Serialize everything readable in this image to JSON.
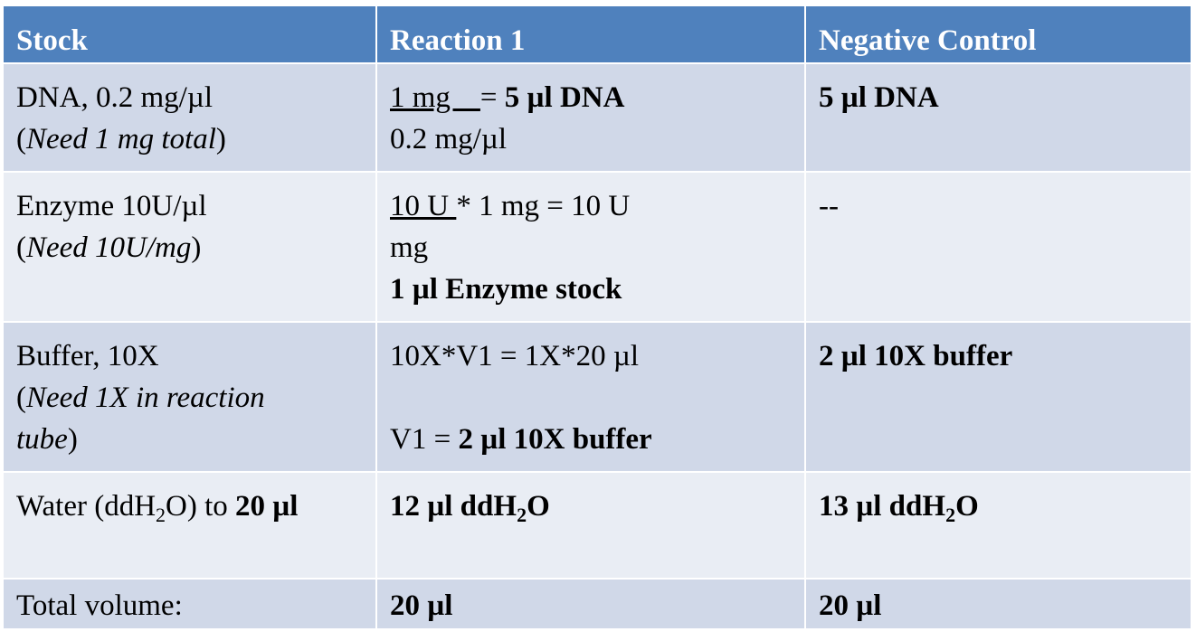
{
  "header": {
    "col1": "Stock",
    "col2": "Reaction 1",
    "col3": "Negative Control"
  },
  "rows": [
    {
      "stock_main": "DNA, 0.2 mg/µl",
      "stock_note": "Need 1 mg total",
      "calc_numerator": "1 mg    ",
      "calc_equals": "= ",
      "calc_result": "5 µl DNA",
      "calc_denominator": "0.2 mg/µl",
      "negative": "5 µl DNA"
    },
    {
      "stock_main": "Enzyme 10U/µl",
      "stock_note": "Need 10U/mg",
      "calc_numerator": "10 U ",
      "calc_rest": "* 1 mg = 10 U",
      "calc_denominator": "mg",
      "calc_result": "1 µl Enzyme stock",
      "negative": "--"
    },
    {
      "stock_main": "Buffer, 10X",
      "stock_note": "Need 1X in reaction tube",
      "calc_line1": "10X*V1 = 1X*20 µl",
      "calc_line2_prefix": "V1 = ",
      "calc_line2_result": "2 µl 10X buffer",
      "negative": "2 µl 10X buffer"
    },
    {
      "stock_prefix": "Water (ddH",
      "stock_sub": "2",
      "stock_suffix": "O) to ",
      "stock_bold": "20 µl",
      "calc_prefix": "12 µl ddH",
      "calc_sub": "2",
      "calc_suffix": "O",
      "neg_prefix": "13 µl ddH",
      "neg_sub": "2",
      "neg_suffix": "O"
    },
    {
      "stock_main": "Total volume:",
      "calc_result": "20 µl",
      "negative": "20 µl"
    }
  ]
}
